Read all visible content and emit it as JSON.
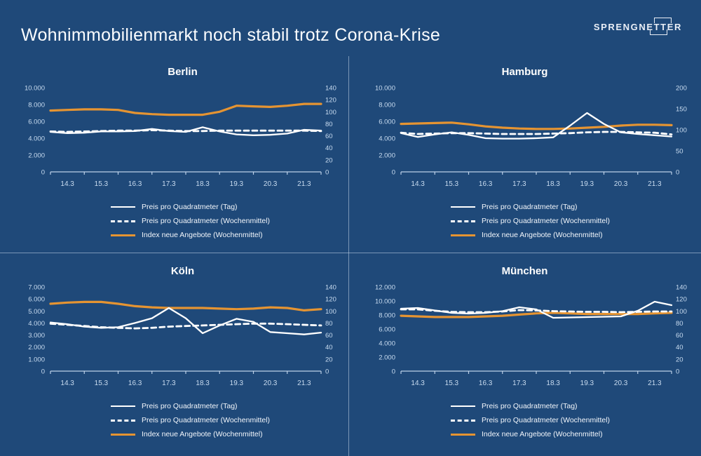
{
  "header": {
    "title": "Wohnimmobilienmarkt noch stabil trotz Corona-Krise",
    "logo": {
      "prefix": "SPRENGNE",
      "tt": "TT",
      "suffix": "ER"
    }
  },
  "colors": {
    "background": "#1F4979",
    "orange": "#E59432",
    "white_line": "#FFFFFF",
    "axis_text": "#C9DCF0",
    "divider": "#D6E4F3"
  },
  "chart_data": [
    {
      "type": "line",
      "title": "Berlin",
      "x_labels": [
        "14.3",
        "15.3",
        "16.3",
        "17.3",
        "18.3",
        "19.3",
        "20.3",
        "21.3"
      ],
      "left_axis": {
        "max": 10000,
        "tick_labels": [
          "10.000",
          "8.000",
          "6.000",
          "4.000",
          "2.000",
          "0"
        ]
      },
      "right_axis": {
        "max": 140,
        "tick_labels": [
          "140",
          "120",
          "100",
          "80",
          "60",
          "40",
          "20",
          "0"
        ]
      },
      "series": [
        {
          "name": "Preis pro Quadratmeter (Tag)",
          "axis": "left",
          "style": "solid-white",
          "values": [
            4750,
            4600,
            4650,
            4800,
            4800,
            4850,
            5100,
            4850,
            4750,
            5300,
            4800,
            4450,
            4350,
            4400,
            4550,
            5000,
            4900
          ]
        },
        {
          "name": "Preis pro Quadratmeter (Wochenmittel)",
          "axis": "left",
          "style": "dashed-white",
          "values": [
            4800,
            4750,
            4800,
            4850,
            4900,
            4900,
            4950,
            4900,
            4850,
            4850,
            4900,
            4900,
            4900,
            4900,
            4900,
            4900,
            4850
          ]
        },
        {
          "name": "Index neue Angebote (Wochenmittel)",
          "axis": "right",
          "style": "solid-orange",
          "values": [
            102,
            103,
            104,
            104,
            103,
            98,
            96,
            95,
            95,
            95,
            100,
            110,
            109,
            108,
            110,
            113,
            113
          ]
        }
      ]
    },
    {
      "type": "line",
      "title": "Hamburg",
      "x_labels": [
        "14.3",
        "15.3",
        "16.3",
        "17.3",
        "18.3",
        "19.3",
        "20.3",
        "21.3"
      ],
      "left_axis": {
        "max": 10000,
        "tick_labels": [
          "10.000",
          "8.000",
          "6.000",
          "4.000",
          "2.000",
          "0"
        ]
      },
      "right_axis": {
        "max": 200,
        "tick_labels": [
          "200",
          "150",
          "100",
          "50",
          "0"
        ]
      },
      "series": [
        {
          "name": "Preis pro Quadratmeter (Tag)",
          "axis": "left",
          "style": "solid-white",
          "values": [
            4600,
            4150,
            4450,
            4700,
            4400,
            4000,
            3950,
            3950,
            4000,
            4100,
            5500,
            7000,
            5700,
            4700,
            4500,
            4350,
            4200
          ]
        },
        {
          "name": "Preis pro Quadratmeter (Wochenmittel)",
          "axis": "left",
          "style": "dashed-white",
          "values": [
            4650,
            4500,
            4550,
            4600,
            4600,
            4550,
            4500,
            4500,
            4500,
            4550,
            4600,
            4700,
            4750,
            4750,
            4700,
            4650,
            4450
          ]
        },
        {
          "name": "Index neue Angebote (Wochenmittel)",
          "axis": "right",
          "style": "solid-orange",
          "values": [
            114,
            115,
            116,
            117,
            113,
            108,
            105,
            103,
            102,
            102,
            103,
            105,
            107,
            110,
            112,
            112,
            111
          ]
        }
      ]
    },
    {
      "type": "line",
      "title": "Köln",
      "x_labels": [
        "14.3",
        "15.3",
        "16.3",
        "17.3",
        "18.3",
        "19.3",
        "20.3",
        "21.3"
      ],
      "left_axis": {
        "max": 7000,
        "tick_labels": [
          "7.000",
          "6.000",
          "5.000",
          "4.000",
          "3.000",
          "2.000",
          "1.000",
          "0"
        ]
      },
      "right_axis": {
        "max": 140,
        "tick_labels": [
          "140",
          "120",
          "100",
          "80",
          "60",
          "40",
          "20",
          "0"
        ]
      },
      "series": [
        {
          "name": "Preis pro Quadratmeter (Tag)",
          "axis": "left",
          "style": "solid-white",
          "values": [
            4050,
            3900,
            3700,
            3600,
            3650,
            4000,
            4400,
            5250,
            4400,
            3150,
            3800,
            4350,
            4100,
            3250,
            3150,
            3050,
            3200
          ]
        },
        {
          "name": "Preis pro Quadratmeter (Wochenmittel)",
          "axis": "left",
          "style": "dashed-white",
          "values": [
            3950,
            3850,
            3750,
            3650,
            3600,
            3550,
            3600,
            3700,
            3750,
            3800,
            3850,
            3900,
            3950,
            3950,
            3900,
            3850,
            3800
          ]
        },
        {
          "name": "Index neue Angebote (Wochenmittel)",
          "axis": "right",
          "style": "solid-orange",
          "values": [
            112,
            114,
            115,
            115,
            112,
            108,
            106,
            105,
            105,
            105,
            104,
            103,
            104,
            106,
            105,
            101,
            103
          ]
        }
      ]
    },
    {
      "type": "line",
      "title": "München",
      "x_labels": [
        "14.3",
        "15.3",
        "16.3",
        "17.3",
        "18.3",
        "19.3",
        "20.3",
        "21.3"
      ],
      "left_axis": {
        "max": 12000,
        "tick_labels": [
          "12.000",
          "10.000",
          "8.000",
          "6.000",
          "4.000",
          "2.000",
          "0"
        ]
      },
      "right_axis": {
        "max": 140,
        "tick_labels": [
          "140",
          "120",
          "100",
          "80",
          "60",
          "40",
          "20",
          "0"
        ]
      },
      "series": [
        {
          "name": "Preis pro Quadratmeter (Tag)",
          "axis": "left",
          "style": "solid-white",
          "values": [
            8900,
            9000,
            8650,
            8300,
            8200,
            8300,
            8550,
            9100,
            8800,
            7600,
            7650,
            7700,
            7750,
            7800,
            8600,
            9900,
            9400
          ]
        },
        {
          "name": "Preis pro Quadratmeter (Wochenmittel)",
          "axis": "left",
          "style": "dashed-white",
          "values": [
            8800,
            8800,
            8600,
            8450,
            8400,
            8400,
            8500,
            8700,
            8650,
            8550,
            8500,
            8450,
            8450,
            8400,
            8450,
            8500,
            8500
          ]
        },
        {
          "name": "Index neue Angebote (Wochenmittel)",
          "axis": "right",
          "style": "solid-orange",
          "values": [
            92,
            91,
            90,
            90,
            90,
            91,
            92,
            94,
            96,
            97,
            96,
            95,
            95,
            95,
            95,
            96,
            97
          ]
        }
      ]
    }
  ]
}
